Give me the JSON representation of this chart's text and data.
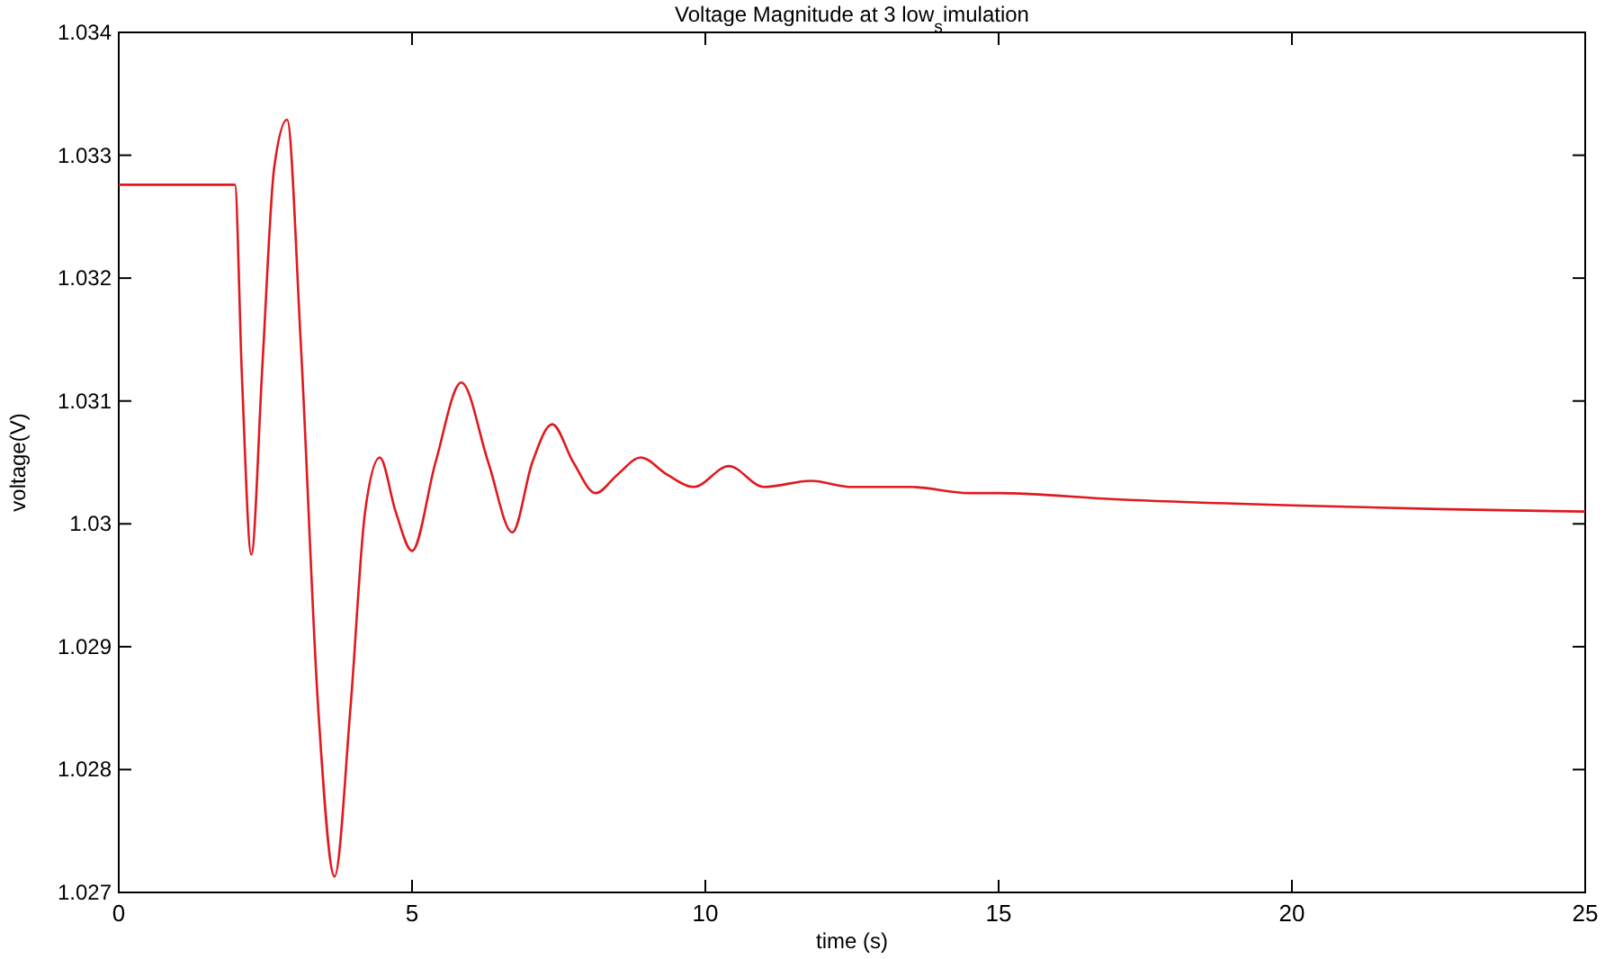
{
  "chart_data": {
    "type": "line",
    "title": "Voltage Magnitude at 3 low$_{s}$imulation",
    "xlabel": "time (s)",
    "ylabel": "voltage(V)",
    "xlim": [
      0,
      25
    ],
    "ylim": [
      1.027,
      1.034
    ],
    "xticks": [
      0,
      5,
      10,
      15,
      20,
      25
    ],
    "yticks": [
      1.027,
      1.028,
      1.029,
      1.03,
      1.031,
      1.032,
      1.033,
      1.034
    ],
    "series": [
      {
        "color": "#e0191e",
        "x": [
          0,
          1.98,
          2.1,
          2.26,
          2.45,
          2.65,
          2.87,
          3.1,
          3.4,
          3.68,
          3.95,
          4.2,
          4.45,
          4.72,
          5.0,
          5.4,
          5.84,
          6.3,
          6.71,
          7.05,
          7.39,
          7.75,
          8.13,
          8.5,
          8.9,
          9.35,
          9.8,
          10.4,
          11.0,
          11.8,
          12.5,
          13.5,
          14.5,
          15,
          17,
          20,
          22.5,
          25
        ],
        "values": [
          1.03276,
          1.03276,
          1.0312,
          1.02975,
          1.0313,
          1.0329,
          1.03329,
          1.0315,
          1.0285,
          1.02713,
          1.0285,
          1.0301,
          1.03054,
          1.0301,
          1.02978,
          1.0305,
          1.03115,
          1.0305,
          1.02993,
          1.0305,
          1.03081,
          1.0305,
          1.03025,
          1.0304,
          1.03054,
          1.0304,
          1.0303,
          1.03047,
          1.0303,
          1.03035,
          1.0303,
          1.0303,
          1.03025,
          1.03025,
          1.0302,
          1.03015,
          1.03012,
          1.0301
        ]
      }
    ]
  }
}
